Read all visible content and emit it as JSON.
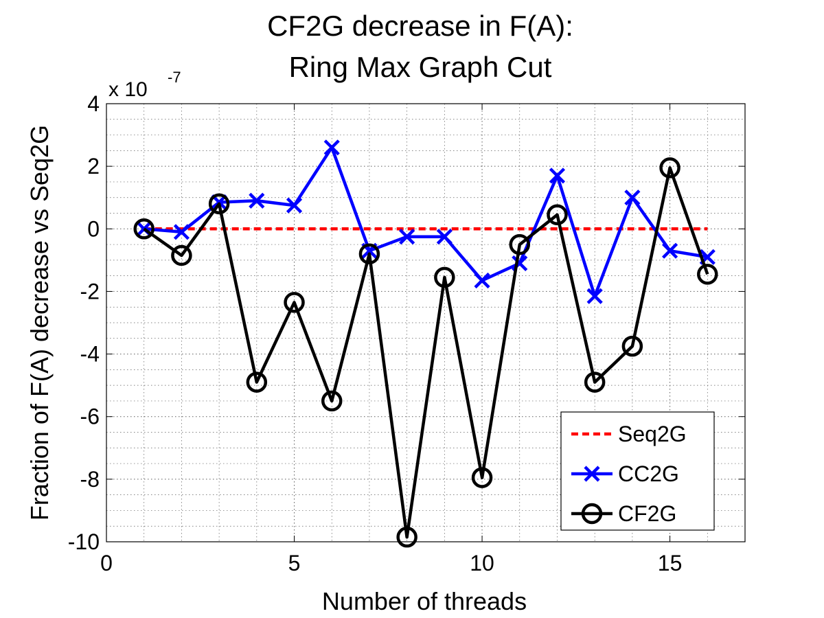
{
  "chart_data": {
    "type": "line",
    "title": [
      "CF2G decrease in F(A):",
      "Ring Max Graph Cut"
    ],
    "xlabel": "Number of threads",
    "ylabel": "Fraction of F(A) decrease vs Seq2G",
    "exponent_base": "x 10",
    "exponent_power": "-7",
    "xlim": [
      0,
      17
    ],
    "ylim": [
      -10,
      4
    ],
    "x_ticks": [
      0,
      5,
      10,
      15
    ],
    "y_ticks": [
      -10,
      -8,
      -6,
      -4,
      -2,
      0,
      2,
      4
    ],
    "x_tick_labels": [
      "0",
      "5",
      "10",
      "15"
    ],
    "y_tick_labels": [
      "-10",
      "-8",
      "-6",
      "-4",
      "-2",
      "0",
      "2",
      "4"
    ],
    "grid": true,
    "legend_position": "bottom-right",
    "x": [
      1,
      2,
      3,
      4,
      5,
      6,
      7,
      8,
      9,
      10,
      11,
      12,
      13,
      14,
      15,
      16
    ],
    "series": [
      {
        "name": "Seq2G",
        "color": "#ff0000",
        "style": "dashed",
        "marker": "none",
        "values": [
          0,
          0,
          0,
          0,
          0,
          0,
          0,
          0,
          0,
          0,
          0,
          0,
          0,
          0,
          0,
          0
        ]
      },
      {
        "name": "CC2G",
        "color": "#0000ff",
        "style": "solid",
        "marker": "x",
        "values": [
          0.0,
          -0.1,
          0.85,
          0.9,
          0.75,
          2.6,
          -0.7,
          -0.25,
          -0.25,
          -1.65,
          -1.1,
          1.7,
          -2.15,
          1.0,
          -0.7,
          -0.9
        ]
      },
      {
        "name": "CF2G",
        "color": "#000000",
        "style": "solid",
        "marker": "circle",
        "values": [
          0.0,
          -0.85,
          0.8,
          -4.9,
          -2.35,
          -5.5,
          -0.8,
          -9.85,
          -1.55,
          -7.95,
          -0.5,
          0.45,
          -4.9,
          -3.75,
          1.95,
          -1.45
        ]
      }
    ]
  }
}
